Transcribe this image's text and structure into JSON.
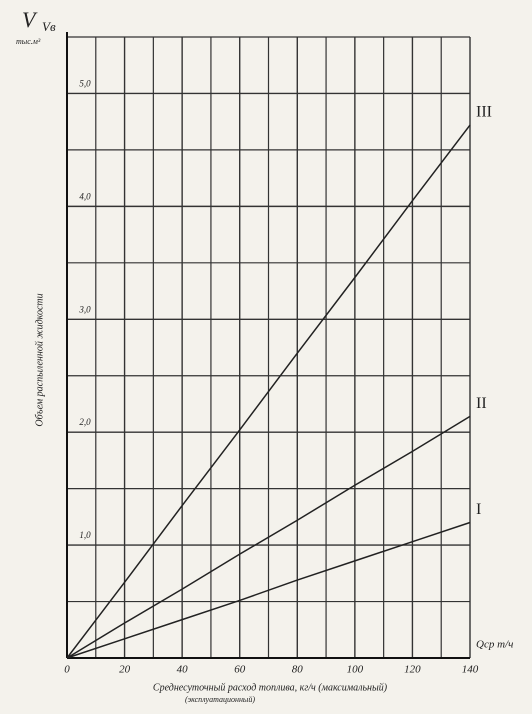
{
  "chart_data": {
    "type": "line",
    "y_symbol": "V",
    "y_sub": "Vв",
    "y_unit": "тыс.м³",
    "ylabel": "Объем распыленной жидкости",
    "xlabel": "Среднесуточный расход топлива, кг/ч (максимальный)",
    "xlabel2": "(эксплуатационный)",
    "x_unit": "Qср т/ч",
    "x": [
      0,
      20,
      40,
      60,
      80,
      100,
      120,
      140
    ],
    "series": [
      {
        "name": "III",
        "color": "#222",
        "values": [
          0,
          0.67,
          1.35,
          2.02,
          2.7,
          3.37,
          4.05,
          4.72
        ]
      },
      {
        "name": "II",
        "color": "#222",
        "values": [
          0,
          0.31,
          0.61,
          0.92,
          1.22,
          1.53,
          1.83,
          2.14
        ]
      },
      {
        "name": "I",
        "color": "#222",
        "values": [
          0,
          0.17,
          0.34,
          0.51,
          0.69,
          0.86,
          1.03,
          1.2
        ]
      }
    ],
    "xlim": [
      0,
      140
    ],
    "xticks": [
      0,
      20,
      40,
      60,
      80,
      100,
      120,
      140
    ],
    "minor_xticks": [
      10,
      30,
      50,
      70,
      90,
      110,
      130
    ],
    "ylim": [
      0,
      5.5
    ],
    "yticks": [
      {
        "value": 1,
        "label": "1,0"
      },
      {
        "value": 2,
        "label": "2,0"
      },
      {
        "value": 3,
        "label": "3,0"
      },
      {
        "value": 4,
        "label": "4,0"
      },
      {
        "value": 5,
        "label": "5,0"
      }
    ],
    "minor_yticks": [
      0.5,
      1.5,
      2.5,
      3.5,
      4.5,
      5.5
    ],
    "grid": true
  }
}
